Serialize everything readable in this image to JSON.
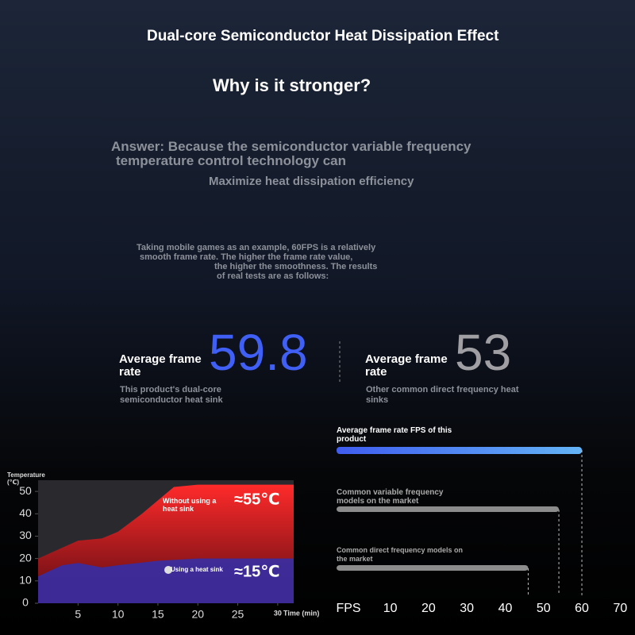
{
  "header": {
    "title": "Dual-core Semiconductor Heat Dissipation Effect",
    "question": "Why is it stronger?",
    "answer": [
      "Answer: Because the semiconductor variable frequency",
      "temperature control technology can",
      "Maximize heat dissipation efficiency"
    ],
    "note": [
      "Taking mobile games as an example, 60FPS is a relatively",
      "smooth frame rate. The higher the frame rate value,",
      "the higher the smoothness. The results",
      "of real tests are as follows:"
    ]
  },
  "stats": [
    {
      "label": "Average frame rate",
      "value": 59.8,
      "caption": "This product's dual-core semiconductor heat sink",
      "color": "#3f5ff5"
    },
    {
      "label": "Average frame rate",
      "value": 53,
      "caption": "Other common direct frequency heat sinks",
      "color": "#a0a0a4"
    }
  ],
  "chart_data": [
    {
      "type": "area",
      "y_label": "Temperature (℃)",
      "x_label": "Time (min)",
      "xlim": [
        0,
        32
      ],
      "ylim": [
        0,
        55
      ],
      "xticks": [
        5,
        10,
        15,
        20,
        25,
        30
      ],
      "yticks": [
        0,
        10,
        20,
        30,
        40,
        50
      ],
      "series": [
        {
          "name": "Without using a heat sink",
          "color": "#ff2a2a",
          "x": [
            0,
            5,
            8,
            10,
            13,
            15,
            17,
            20,
            25,
            32
          ],
          "values": [
            20,
            28,
            29,
            32,
            40,
            46,
            52,
            53,
            53,
            53
          ],
          "annotation": "≈55℃"
        },
        {
          "name": "Using a heat sink",
          "color": "#3b2c9e",
          "x": [
            0,
            3,
            5,
            8,
            10,
            15,
            20,
            32
          ],
          "values": [
            12,
            17,
            18,
            16,
            17,
            19,
            20,
            20
          ],
          "annotation": "≈15℃"
        }
      ]
    },
    {
      "type": "hbar",
      "x_label": "FPS",
      "xlim": [
        -4,
        72
      ],
      "xticks": [
        10,
        20,
        30,
        40,
        50,
        60,
        70
      ],
      "categories": [
        "Average frame rate FPS of this product",
        "Common variable frequency models on the market",
        "Common direct frequency models on the market"
      ],
      "values": [
        60,
        54,
        46
      ],
      "colors": [
        "#4a6cf2",
        "#8c8c8c",
        "#8c8c8c"
      ]
    }
  ]
}
